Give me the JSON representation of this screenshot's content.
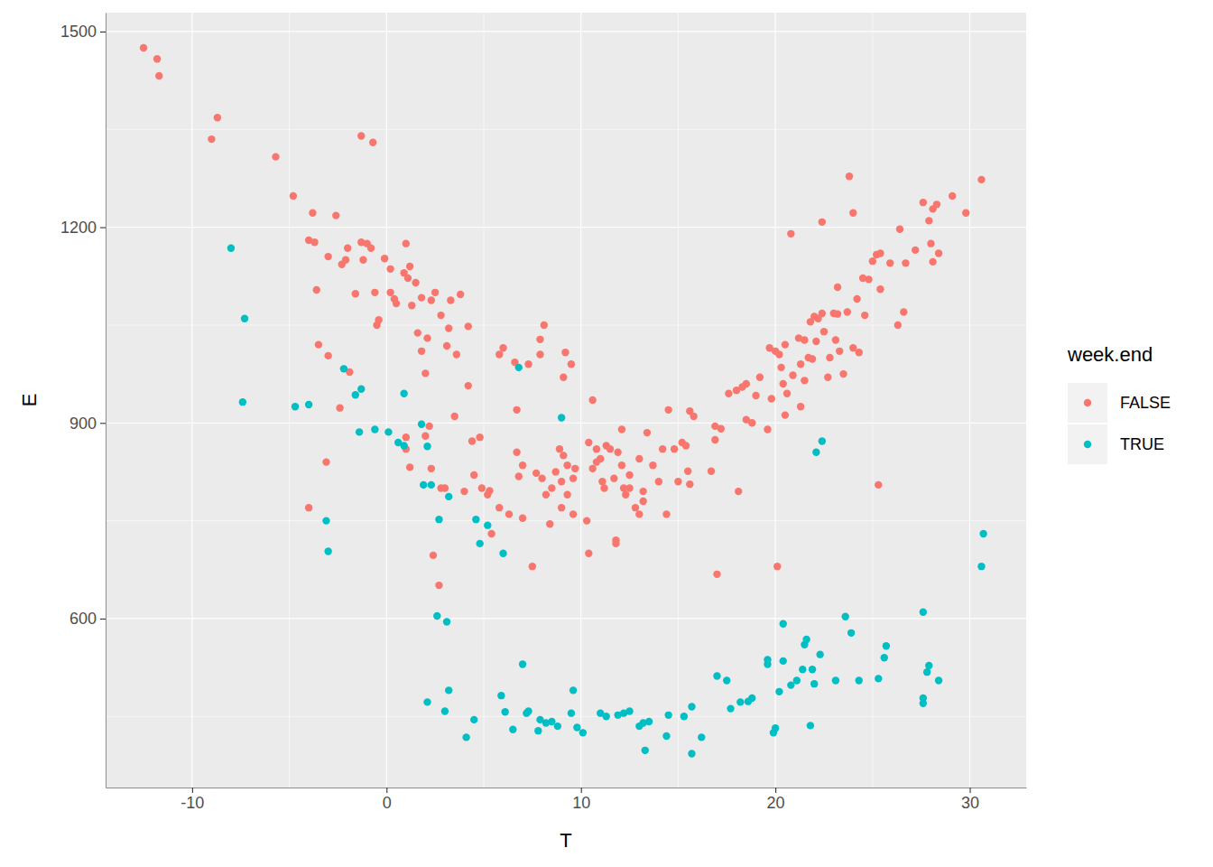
{
  "chart_data": {
    "type": "scatter",
    "x_label": "T",
    "y_label": "E",
    "legend_title": "week.end",
    "legend": "right",
    "grid": true,
    "xlim": [
      -14.45,
      32.9
    ],
    "ylim": [
      341,
      1529
    ],
    "xticks": [
      -10,
      0,
      10,
      20,
      30
    ],
    "yticks": [
      600,
      900,
      1200,
      1500
    ],
    "series": [
      {
        "name": "FALSE",
        "color": "#F8766D",
        "marker": "circle",
        "x": [
          -12.5,
          -11.8,
          -11.7,
          -9.0,
          -8.7,
          -5.7,
          -4.8,
          -3.8,
          -4.0,
          -3.7,
          -3.6,
          -2.6,
          -3.0,
          -2.3,
          -2.0,
          -2.1,
          -1.6,
          -1.3,
          -1.2,
          -1.0,
          -0.8,
          -1.3,
          -0.7,
          -0.6,
          -0.5,
          -0.4,
          -0.1,
          0.2,
          0.2,
          0.4,
          0.5,
          0.9,
          1.0,
          1.2,
          1.1,
          1.5,
          1.3,
          1.8,
          1.6,
          1.8,
          2.0,
          2.1,
          2.3,
          2.5,
          2.8,
          3.1,
          3.3,
          3.2,
          3.6,
          3.8,
          3.5,
          4.2,
          4.2,
          4.4,
          4.5,
          4.8,
          4.9,
          5.3,
          5.2,
          5.4,
          5.8,
          5.8,
          6.0,
          6.3,
          6.6,
          6.7,
          6.7,
          6.8,
          7.0,
          7.0,
          7.3,
          7.5,
          7.7,
          7.9,
          7.9,
          8.1,
          8.0,
          8.2,
          8.4,
          8.5,
          8.7,
          8.9,
          9.0,
          9.1,
          9.1,
          9.2,
          9.3,
          9.5,
          9.0,
          9.3,
          9.6,
          9.7,
          9.6,
          10.3,
          10.4,
          10.4,
          10.6,
          10.6,
          10.8,
          10.8,
          11.0,
          11.2,
          11.1,
          11.3,
          11.5,
          11.7,
          11.8,
          11.8,
          11.9,
          12.1,
          12.1,
          12.2,
          12.3,
          12.5,
          12.5,
          12.8,
          13.0,
          13.0,
          13.2,
          13.2,
          13.4,
          13.7,
          14.0,
          14.2,
          14.5,
          14.4,
          14.8,
          15.0,
          15.2,
          15.4,
          15.5,
          15.6,
          15.6,
          15.8,
          16.7,
          16.9,
          16.9,
          17.0,
          17.2,
          17.6,
          18.0,
          18.1,
          18.3,
          18.5,
          18.5,
          18.8,
          19.0,
          19.2,
          19.6,
          19.7,
          19.8,
          20.0,
          20.2,
          20.1,
          20.3,
          20.4,
          20.5,
          20.5,
          20.6,
          20.8,
          20.9,
          21.2,
          21.3,
          21.3,
          21.5,
          21.5,
          21.7,
          21.8,
          21.9,
          22.0,
          22.1,
          22.2,
          22.4,
          22.4,
          22.5,
          22.7,
          22.8,
          23.0,
          23.1,
          23.2,
          23.2,
          23.3,
          23.5,
          23.7,
          23.8,
          24.0,
          24.0,
          24.2,
          24.3,
          24.5,
          24.6,
          24.8,
          25.0,
          25.2,
          25.3,
          25.4,
          25.4,
          25.9,
          26.3,
          26.4,
          26.6,
          26.7,
          27.2,
          27.6,
          27.9,
          28.0,
          28.1,
          28.3,
          28.1,
          28.4,
          29.1,
          29.8,
          30.6,
          2.0,
          1.0,
          1.0,
          1.2,
          2.3,
          2.2,
          2.4,
          2.7,
          2.8,
          3.0,
          4.0,
          -3.5,
          -3.0,
          -2.4,
          -4.0,
          -3.1,
          -1.9
        ],
        "values": [
          1475,
          1458,
          1432,
          1335,
          1368,
          1308,
          1248,
          1222,
          1180,
          1177,
          1104,
          1218,
          1155,
          1143,
          1168,
          1150,
          1098,
          1177,
          1150,
          1175,
          1168,
          1340,
          1330,
          1100,
          1050,
          1058,
          1152,
          1136,
          1100,
          1090,
          1083,
          1130,
          1175,
          1140,
          1122,
          1115,
          1080,
          1092,
          1038,
          1010,
          976,
          1030,
          1088,
          1100,
          1065,
          1018,
          1088,
          1045,
          1005,
          1097,
          910,
          1048,
          957,
          872,
          820,
          878,
          800,
          796,
          790,
          730,
          770,
          1005,
          1015,
          760,
          993,
          920,
          855,
          818,
          835,
          754,
          990,
          680,
          823,
          1028,
          1005,
          1050,
          815,
          790,
          745,
          800,
          825,
          860,
          810,
          850,
          970,
          1008,
          835,
          990,
          770,
          790,
          760,
          830,
          815,
          750,
          700,
          870,
          935,
          830,
          840,
          860,
          845,
          800,
          810,
          865,
          860,
          815,
          720,
          715,
          855,
          835,
          890,
          800,
          790,
          820,
          800,
          770,
          845,
          760,
          795,
          780,
          885,
          835,
          810,
          860,
          920,
          760,
          860,
          810,
          870,
          865,
          826,
          806,
          918,
          910,
          826,
          895,
          874,
          668,
          891,
          945,
          950,
          795,
          955,
          960,
          905,
          900,
          942,
          970,
          890,
          1015,
          937,
          1010,
          1005,
          680,
          985,
          960,
          1020,
          912,
          945,
          1190,
          973,
          1030,
          990,
          925,
          1027,
          965,
          1000,
          1055,
          998,
          1063,
          1025,
          1060,
          1208,
          1068,
          1040,
          970,
          1000,
          1068,
          1027,
          1108,
          1067,
          1010,
          975,
          1070,
          1278,
          1015,
          1222,
          1090,
          1008,
          1122,
          1065,
          1120,
          1148,
          1158,
          805,
          1105,
          1160,
          1145,
          1050,
          1197,
          1070,
          1145,
          1165,
          1238,
          1210,
          1175,
          1228,
          1235,
          1147,
          1160,
          1248,
          1222,
          1273,
          880,
          860,
          878,
          832,
          830,
          895,
          697,
          651,
          800,
          800,
          795,
          1020,
          1003,
          923,
          770,
          840,
          978
        ]
      },
      {
        "name": "TRUE",
        "color": "#00BFC4",
        "marker": "circle",
        "x": [
          -8.0,
          -7.3,
          -7.4,
          -4.7,
          -4.0,
          -3.1,
          -3.0,
          -2.2,
          -1.6,
          -1.4,
          -1.3,
          -0.6,
          0.1,
          0.6,
          0.9,
          0.9,
          1.8,
          1.9,
          2.1,
          2.3,
          2.7,
          3.2,
          4.6,
          4.8,
          5.2,
          6.0,
          6.8,
          9.0,
          2.1,
          2.6,
          3.0,
          3.1,
          3.2,
          4.1,
          4.5,
          5.9,
          6.1,
          6.5,
          7.0,
          7.2,
          7.3,
          7.8,
          7.9,
          8.2,
          8.5,
          8.8,
          9.5,
          9.6,
          9.8,
          10.1,
          11.0,
          11.3,
          11.9,
          12.2,
          12.5,
          13.0,
          13.2,
          13.3,
          13.5,
          14.4,
          14.5,
          15.3,
          15.7,
          15.7,
          16.2,
          17.0,
          17.5,
          17.7,
          18.2,
          18.6,
          18.8,
          19.6,
          19.6,
          19.9,
          20.0,
          20.2,
          20.4,
          20.4,
          20.8,
          21.1,
          21.4,
          21.5,
          21.6,
          21.8,
          21.9,
          22.0,
          22.1,
          22.3,
          22.4,
          23.1,
          23.6,
          23.9,
          24.3,
          25.3,
          25.6,
          25.7,
          27.6,
          27.6,
          27.6,
          27.8,
          27.9,
          28.4,
          30.6,
          30.7
        ],
        "values": [
          1168,
          1060,
          932,
          925,
          928,
          750,
          703,
          983,
          943,
          886,
          952,
          890,
          886,
          870,
          945,
          865,
          898,
          805,
          864,
          805,
          752,
          787,
          752,
          715,
          743,
          700,
          985,
          908,
          472,
          604,
          458,
          595,
          490,
          418,
          445,
          482,
          457,
          430,
          530,
          455,
          458,
          428,
          445,
          440,
          442,
          435,
          455,
          490,
          433,
          425,
          455,
          450,
          452,
          455,
          458,
          435,
          440,
          398,
          442,
          420,
          452,
          450,
          393,
          465,
          418,
          512,
          505,
          462,
          472,
          473,
          478,
          537,
          530,
          425,
          432,
          488,
          592,
          535,
          498,
          505,
          522,
          560,
          568,
          436,
          522,
          500,
          855,
          545,
          872,
          505,
          603,
          578,
          505,
          508,
          540,
          558,
          610,
          478,
          470,
          518,
          528,
          505,
          680,
          730
        ]
      }
    ]
  }
}
